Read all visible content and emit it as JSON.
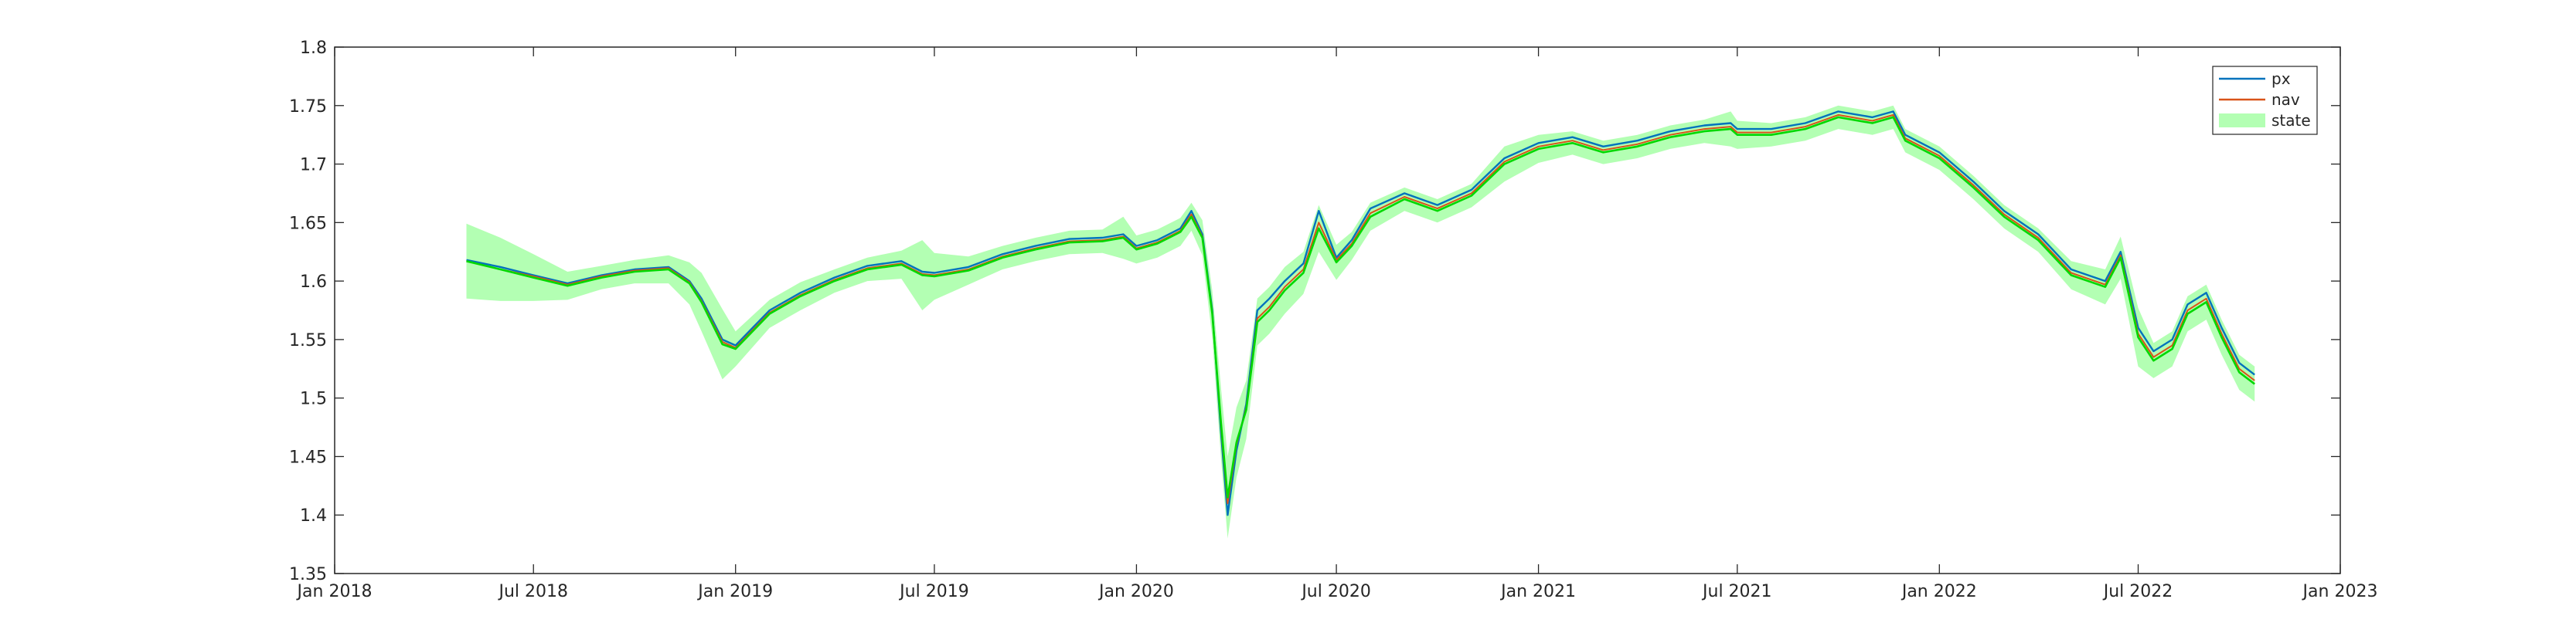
{
  "chart_data": {
    "type": "line",
    "title": "",
    "xlabel": "",
    "ylabel": "",
    "xlim": [
      "2018-01-01",
      "2023-01-01"
    ],
    "ylim": [
      1.35,
      1.8
    ],
    "grid": false,
    "legend_placement": "top-right",
    "x_ticks": [
      "2018-01-01",
      "2018-07-01",
      "2019-01-01",
      "2019-07-01",
      "2020-01-01",
      "2020-07-01",
      "2021-01-01",
      "2021-07-01",
      "2022-01-01",
      "2022-07-01",
      "2023-01-01"
    ],
    "x_tick_labels": [
      "Jan 2018",
      "Jul 2018",
      "Jan 2019",
      "Jul 2019",
      "Jan 2020",
      "Jul 2020",
      "Jan 2021",
      "Jul 2021",
      "Jan 2022",
      "Jul 2022",
      "Jan 2023"
    ],
    "y_ticks": [
      1.35,
      1.4,
      1.45,
      1.5,
      1.55,
      1.6,
      1.65,
      1.7,
      1.75,
      1.8
    ],
    "y_tick_labels": [
      "1.35",
      "1.4",
      "1.45",
      "1.5",
      "1.55",
      "1.6",
      "1.65",
      "1.7",
      "1.75",
      "1.8"
    ],
    "series": [
      {
        "name": "px",
        "color": "#0072bd",
        "style": "line"
      },
      {
        "name": "nav",
        "color": "#d95319",
        "style": "line"
      },
      {
        "name": "state",
        "color": "#b3ffb3",
        "style": "band",
        "line_color": "#00d800"
      }
    ],
    "x": [
      "2018-05-01",
      "2018-06-01",
      "2018-07-01",
      "2018-08-01",
      "2018-09-01",
      "2018-10-01",
      "2018-11-01",
      "2018-11-20",
      "2018-12-01",
      "2018-12-20",
      "2019-01-01",
      "2019-02-01",
      "2019-03-01",
      "2019-04-01",
      "2019-05-01",
      "2019-06-01",
      "2019-06-20",
      "2019-07-01",
      "2019-08-01",
      "2019-09-01",
      "2019-10-01",
      "2019-11-01",
      "2019-12-01",
      "2019-12-20",
      "2020-01-01",
      "2020-01-20",
      "2020-02-10",
      "2020-02-20",
      "2020-03-01",
      "2020-03-10",
      "2020-03-18",
      "2020-03-24",
      "2020-04-01",
      "2020-04-10",
      "2020-04-20",
      "2020-05-01",
      "2020-05-15",
      "2020-06-01",
      "2020-06-15",
      "2020-07-01",
      "2020-07-15",
      "2020-08-01",
      "2020-09-01",
      "2020-10-01",
      "2020-11-01",
      "2020-12-01",
      "2021-01-01",
      "2021-02-01",
      "2021-03-01",
      "2021-04-01",
      "2021-05-01",
      "2021-06-01",
      "2021-06-25",
      "2021-07-01",
      "2021-08-01",
      "2021-09-01",
      "2021-10-01",
      "2021-11-01",
      "2021-11-20",
      "2021-12-01",
      "2022-01-01",
      "2022-02-01",
      "2022-03-01",
      "2022-04-01",
      "2022-05-01",
      "2022-06-01",
      "2022-06-15",
      "2022-07-01",
      "2022-07-15",
      "2022-08-01",
      "2022-08-15",
      "2022-09-01",
      "2022-09-15",
      "2022-10-01",
      "2022-10-15"
    ],
    "px": [
      1.618,
      1.612,
      1.605,
      1.598,
      1.605,
      1.61,
      1.612,
      1.6,
      1.585,
      1.55,
      1.545,
      1.575,
      1.59,
      1.603,
      1.613,
      1.617,
      1.608,
      1.607,
      1.612,
      1.623,
      1.63,
      1.636,
      1.637,
      1.64,
      1.63,
      1.635,
      1.645,
      1.66,
      1.64,
      1.575,
      1.47,
      1.4,
      1.455,
      1.495,
      1.575,
      1.585,
      1.6,
      1.615,
      1.66,
      1.62,
      1.635,
      1.662,
      1.675,
      1.665,
      1.678,
      1.705,
      1.718,
      1.723,
      1.715,
      1.72,
      1.728,
      1.733,
      1.735,
      1.73,
      1.73,
      1.735,
      1.745,
      1.74,
      1.745,
      1.725,
      1.71,
      1.685,
      1.66,
      1.64,
      1.61,
      1.6,
      1.625,
      1.56,
      1.54,
      1.55,
      1.58,
      1.59,
      1.56,
      1.53,
      1.52
    ],
    "nav": [
      1.617,
      1.61,
      1.604,
      1.597,
      1.604,
      1.609,
      1.611,
      1.599,
      1.583,
      1.548,
      1.543,
      1.573,
      1.588,
      1.601,
      1.611,
      1.615,
      1.606,
      1.605,
      1.61,
      1.621,
      1.628,
      1.634,
      1.635,
      1.638,
      1.628,
      1.633,
      1.643,
      1.657,
      1.638,
      1.573,
      1.475,
      1.41,
      1.46,
      1.492,
      1.568,
      1.578,
      1.595,
      1.61,
      1.65,
      1.618,
      1.632,
      1.658,
      1.672,
      1.662,
      1.675,
      1.702,
      1.715,
      1.72,
      1.712,
      1.717,
      1.725,
      1.73,
      1.732,
      1.727,
      1.727,
      1.732,
      1.742,
      1.737,
      1.742,
      1.722,
      1.707,
      1.682,
      1.657,
      1.637,
      1.607,
      1.597,
      1.622,
      1.555,
      1.535,
      1.545,
      1.575,
      1.585,
      1.555,
      1.525,
      1.515
    ],
    "state": [
      1.617,
      1.61,
      1.603,
      1.596,
      1.603,
      1.608,
      1.61,
      1.598,
      1.582,
      1.546,
      1.542,
      1.572,
      1.587,
      1.6,
      1.61,
      1.614,
      1.605,
      1.604,
      1.609,
      1.62,
      1.627,
      1.633,
      1.634,
      1.637,
      1.627,
      1.632,
      1.642,
      1.655,
      1.637,
      1.572,
      1.478,
      1.415,
      1.462,
      1.49,
      1.565,
      1.575,
      1.592,
      1.607,
      1.645,
      1.616,
      1.63,
      1.655,
      1.67,
      1.66,
      1.673,
      1.7,
      1.713,
      1.718,
      1.71,
      1.715,
      1.723,
      1.728,
      1.73,
      1.725,
      1.725,
      1.73,
      1.74,
      1.735,
      1.74,
      1.72,
      1.705,
      1.68,
      1.655,
      1.635,
      1.605,
      1.595,
      1.62,
      1.552,
      1.532,
      1.542,
      1.572,
      1.582,
      1.552,
      1.522,
      1.512
    ],
    "state_band_halfwidth": [
      0.032,
      0.027,
      0.02,
      0.012,
      0.01,
      0.01,
      0.012,
      0.018,
      0.025,
      0.03,
      0.015,
      0.012,
      0.012,
      0.01,
      0.01,
      0.012,
      0.03,
      0.02,
      0.012,
      0.01,
      0.01,
      0.01,
      0.01,
      0.018,
      0.012,
      0.012,
      0.012,
      0.012,
      0.015,
      0.02,
      0.03,
      0.035,
      0.03,
      0.025,
      0.02,
      0.02,
      0.02,
      0.018,
      0.02,
      0.015,
      0.012,
      0.012,
      0.01,
      0.01,
      0.01,
      0.015,
      0.012,
      0.01,
      0.01,
      0.01,
      0.01,
      0.01,
      0.015,
      0.012,
      0.01,
      0.01,
      0.01,
      0.01,
      0.01,
      0.01,
      0.01,
      0.01,
      0.01,
      0.01,
      0.012,
      0.015,
      0.018,
      0.025,
      0.015,
      0.015,
      0.015,
      0.015,
      0.015,
      0.015,
      0.015
    ]
  }
}
